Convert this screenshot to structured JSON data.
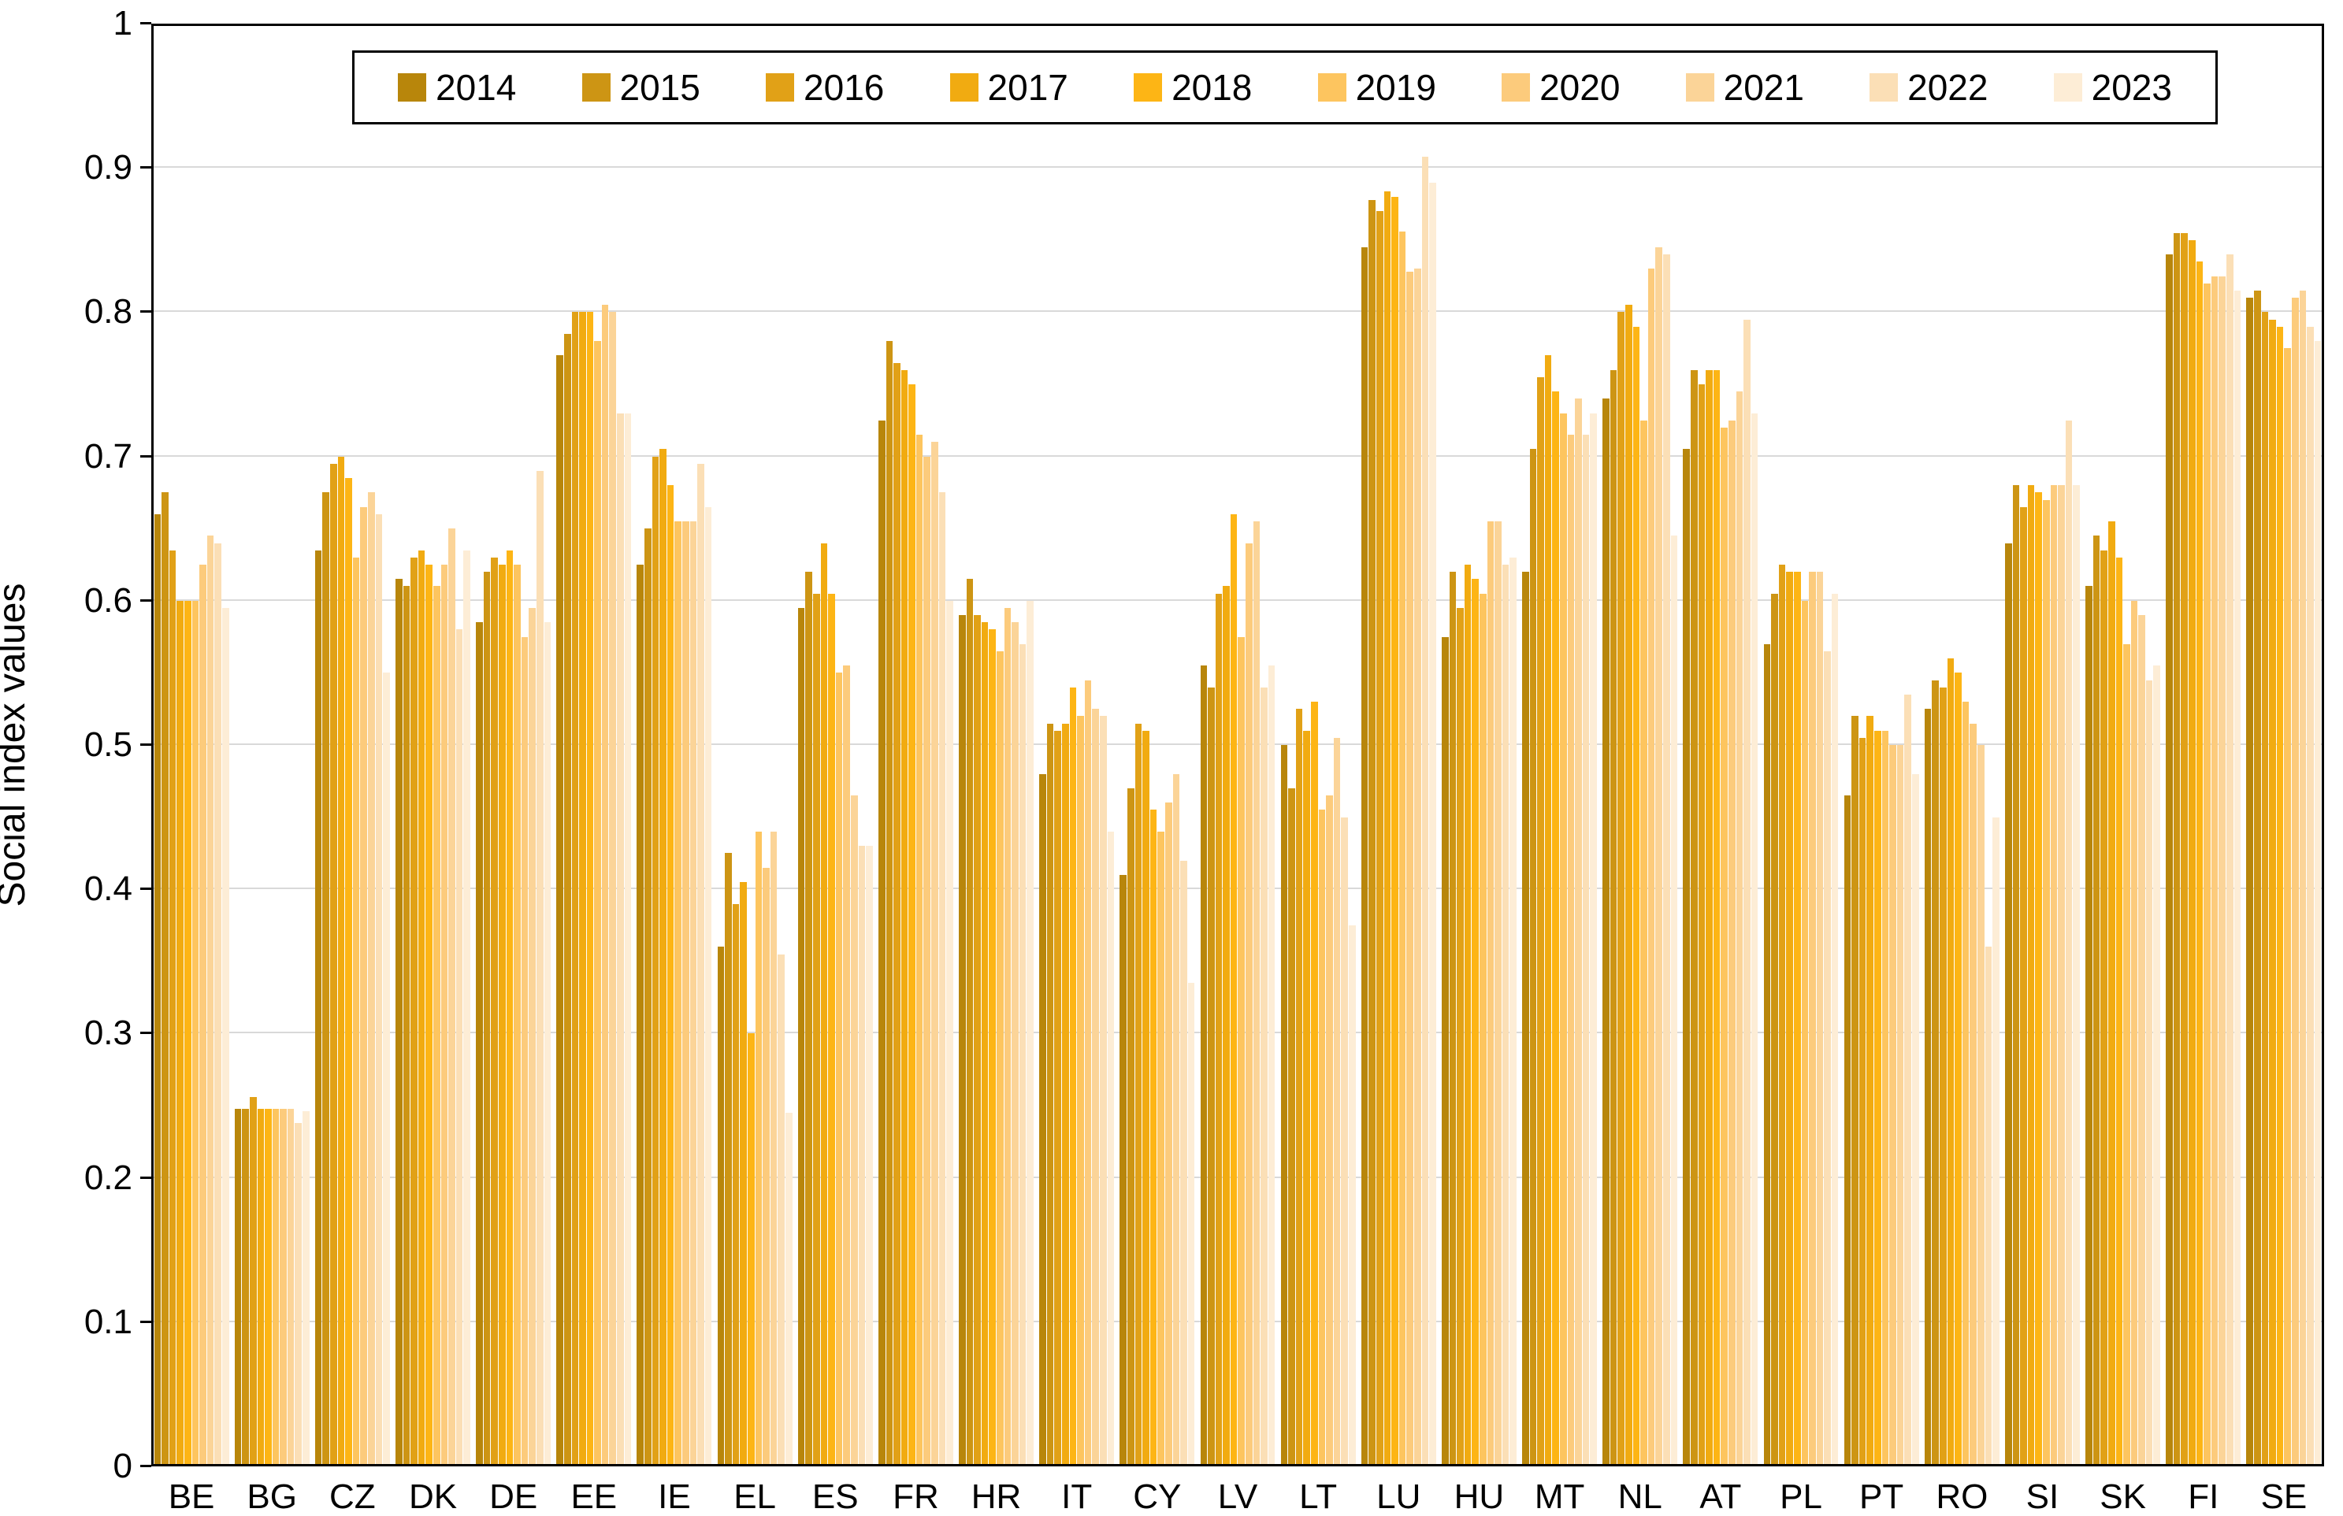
{
  "chart_data": {
    "type": "bar",
    "title": "",
    "ylabel": "Social index values",
    "xlabel": "",
    "ylim": [
      0,
      1
    ],
    "ytick_step": 0.1,
    "ytick_labels": [
      "0",
      "0.1",
      "0.2",
      "0.3",
      "0.4",
      "0.5",
      "0.6",
      "0.7",
      "0.8",
      "0.9",
      "1"
    ],
    "grid": true,
    "legend_position": "top-center",
    "categories": [
      "BE",
      "BG",
      "CZ",
      "DK",
      "DE",
      "EE",
      "IE",
      "EL",
      "ES",
      "FR",
      "HR",
      "IT",
      "CY",
      "LV",
      "LT",
      "LU",
      "HU",
      "MT",
      "NL",
      "AT",
      "PL",
      "PT",
      "RO",
      "SI",
      "SK",
      "FI",
      "SE"
    ],
    "series": [
      {
        "name": "2014",
        "color": "#B8860B",
        "values": [
          0.66,
          0.248,
          0.635,
          0.615,
          0.585,
          0.77,
          0.625,
          0.36,
          0.595,
          0.725,
          0.59,
          0.48,
          0.41,
          0.555,
          0.5,
          0.845,
          0.575,
          0.62,
          0.74,
          0.705,
          0.57,
          0.465,
          0.525,
          0.64,
          0.61,
          0.84,
          0.81
        ]
      },
      {
        "name": "2015",
        "color": "#CD9514",
        "values": [
          0.675,
          0.248,
          0.675,
          0.61,
          0.62,
          0.785,
          0.65,
          0.425,
          0.62,
          0.78,
          0.615,
          0.515,
          0.47,
          0.54,
          0.47,
          0.878,
          0.62,
          0.705,
          0.76,
          0.76,
          0.605,
          0.52,
          0.545,
          0.68,
          0.645,
          0.855,
          0.815
        ]
      },
      {
        "name": "2016",
        "color": "#E1A117",
        "values": [
          0.635,
          0.256,
          0.695,
          0.63,
          0.63,
          0.8,
          0.7,
          0.39,
          0.605,
          0.765,
          0.59,
          0.51,
          0.515,
          0.605,
          0.525,
          0.87,
          0.595,
          0.755,
          0.8,
          0.75,
          0.625,
          0.505,
          0.54,
          0.665,
          0.635,
          0.855,
          0.8
        ]
      },
      {
        "name": "2017",
        "color": "#F1AB11",
        "values": [
          0.6,
          0.248,
          0.7,
          0.635,
          0.625,
          0.8,
          0.705,
          0.405,
          0.64,
          0.76,
          0.585,
          0.515,
          0.51,
          0.61,
          0.51,
          0.884,
          0.625,
          0.77,
          0.805,
          0.76,
          0.62,
          0.52,
          0.56,
          0.68,
          0.655,
          0.85,
          0.795
        ]
      },
      {
        "name": "2018",
        "color": "#FDB515",
        "values": [
          0.6,
          0.248,
          0.685,
          0.625,
          0.635,
          0.8,
          0.68,
          0.3,
          0.605,
          0.75,
          0.58,
          0.54,
          0.455,
          0.66,
          0.53,
          0.88,
          0.615,
          0.745,
          0.79,
          0.76,
          0.62,
          0.51,
          0.55,
          0.675,
          0.63,
          0.835,
          0.79
        ]
      },
      {
        "name": "2019",
        "color": "#FDC55F",
        "values": [
          0.6,
          0.248,
          0.63,
          0.61,
          0.625,
          0.78,
          0.655,
          0.44,
          0.55,
          0.715,
          0.565,
          0.52,
          0.44,
          0.575,
          0.455,
          0.856,
          0.605,
          0.73,
          0.725,
          0.72,
          0.6,
          0.51,
          0.53,
          0.67,
          0.57,
          0.82,
          0.775
        ]
      },
      {
        "name": "2020",
        "color": "#FCCB7C",
        "values": [
          0.625,
          0.248,
          0.665,
          0.625,
          0.575,
          0.805,
          0.655,
          0.415,
          0.555,
          0.7,
          0.595,
          0.545,
          0.46,
          0.64,
          0.465,
          0.828,
          0.655,
          0.715,
          0.83,
          0.725,
          0.62,
          0.5,
          0.515,
          0.68,
          0.6,
          0.825,
          0.81
        ]
      },
      {
        "name": "2021",
        "color": "#FBD498",
        "values": [
          0.645,
          0.248,
          0.675,
          0.65,
          0.595,
          0.8,
          0.655,
          0.44,
          0.465,
          0.71,
          0.585,
          0.525,
          0.48,
          0.655,
          0.505,
          0.83,
          0.655,
          0.74,
          0.845,
          0.745,
          0.62,
          0.5,
          0.5,
          0.68,
          0.59,
          0.825,
          0.815
        ]
      },
      {
        "name": "2022",
        "color": "#FBDFB6",
        "values": [
          0.64,
          0.238,
          0.66,
          0.58,
          0.69,
          0.73,
          0.695,
          0.355,
          0.43,
          0.675,
          0.57,
          0.52,
          0.42,
          0.54,
          0.45,
          0.908,
          0.625,
          0.715,
          0.84,
          0.795,
          0.565,
          0.535,
          0.36,
          0.725,
          0.545,
          0.84,
          0.79
        ]
      },
      {
        "name": "2023",
        "color": "#FDEDD6",
        "values": [
          0.595,
          0.246,
          0.55,
          0.635,
          0.585,
          0.73,
          0.665,
          0.245,
          0.43,
          0.6,
          0.6,
          0.44,
          0.335,
          0.555,
          0.375,
          0.89,
          0.63,
          0.73,
          0.645,
          0.73,
          0.605,
          0.48,
          0.45,
          0.68,
          0.555,
          0.815,
          0.78
        ]
      }
    ]
  }
}
